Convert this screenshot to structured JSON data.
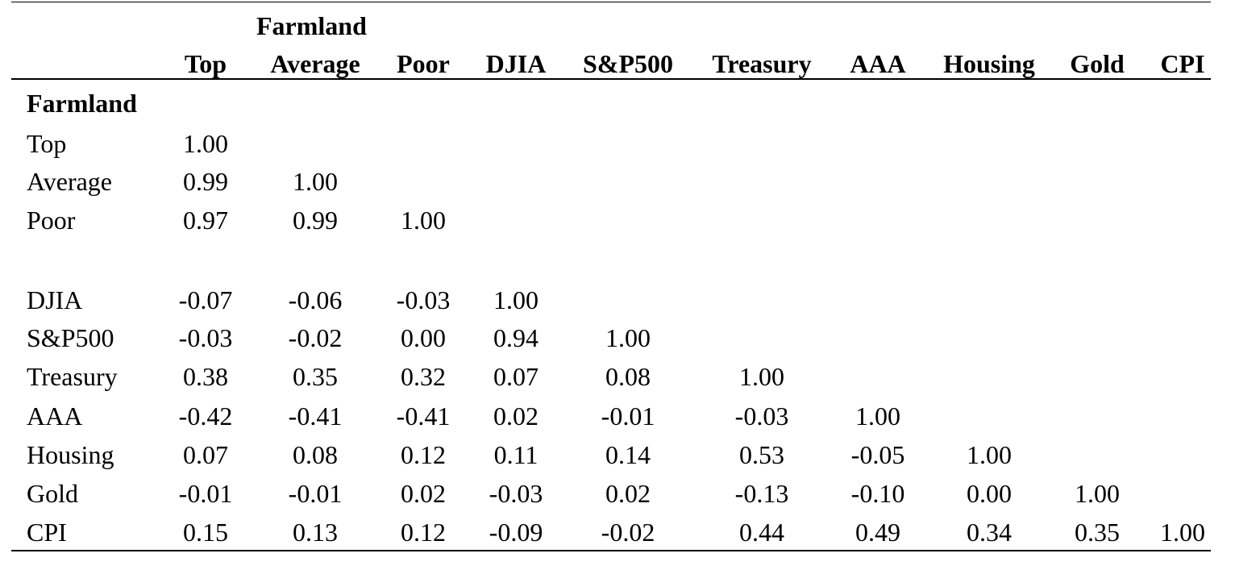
{
  "table": {
    "group_header": "Farmland",
    "columns": [
      "Top",
      "Average",
      "Poor",
      "DJIA",
      "S&P500",
      "Treasury",
      "AAA",
      "Housing",
      "Gold",
      "CPI"
    ],
    "section_label": "Farmland",
    "rows": [
      {
        "label": "Top",
        "values": [
          "1.00"
        ]
      },
      {
        "label": "Average",
        "values": [
          "0.99",
          "1.00"
        ]
      },
      {
        "label": "Poor",
        "values": [
          "0.97",
          "0.99",
          "1.00"
        ]
      },
      {
        "label": "DJIA",
        "values": [
          "-0.07",
          "-0.06",
          "-0.03",
          "1.00"
        ]
      },
      {
        "label": "S&P500",
        "values": [
          "-0.03",
          "-0.02",
          "0.00",
          "0.94",
          "1.00"
        ]
      },
      {
        "label": "Treasury",
        "values": [
          "0.38",
          "0.35",
          "0.32",
          "0.07",
          "0.08",
          "1.00"
        ]
      },
      {
        "label": "AAA",
        "values": [
          "-0.42",
          "-0.41",
          "-0.41",
          "0.02",
          "-0.01",
          "-0.03",
          "1.00"
        ]
      },
      {
        "label": "Housing",
        "values": [
          "0.07",
          "0.08",
          "0.12",
          "0.11",
          "0.14",
          "0.53",
          "-0.05",
          "1.00"
        ]
      },
      {
        "label": "Gold",
        "values": [
          "-0.01",
          "-0.01",
          "0.02",
          "-0.03",
          "0.02",
          "-0.13",
          "-0.10",
          "0.00",
          "1.00"
        ]
      },
      {
        "label": "CPI",
        "values": [
          "0.15",
          "0.13",
          "0.12",
          "-0.09",
          "-0.02",
          "0.44",
          "0.49",
          "0.34",
          "0.35",
          "1.00"
        ]
      }
    ]
  }
}
